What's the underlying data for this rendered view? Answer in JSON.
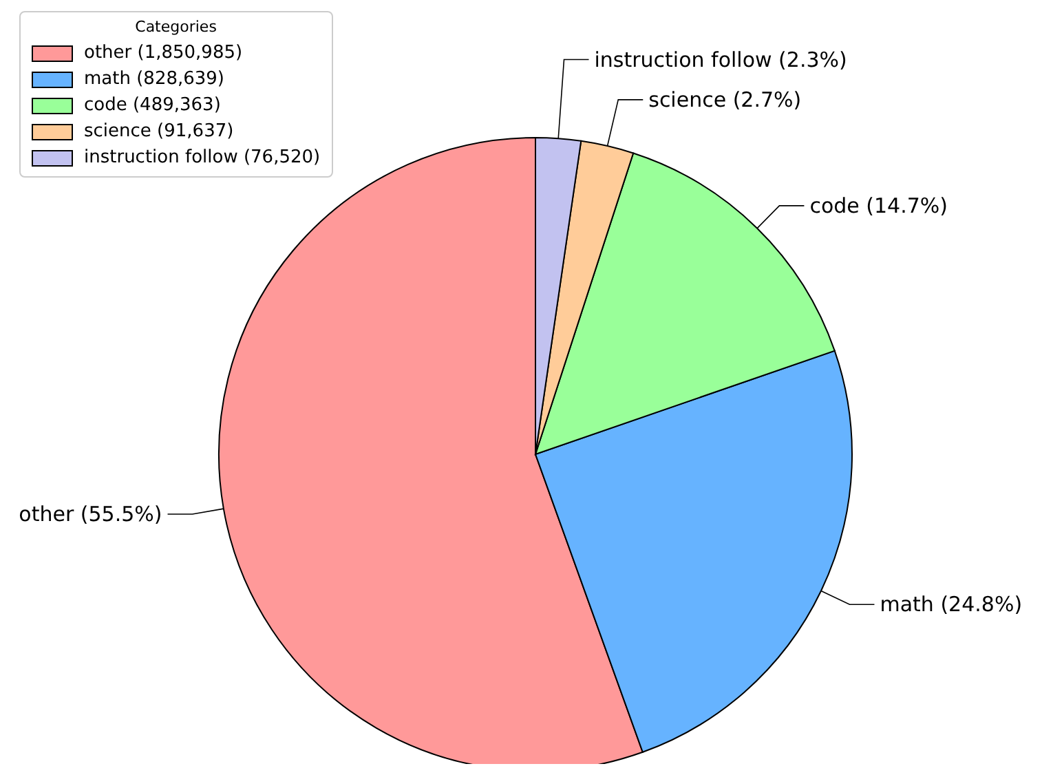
{
  "chart_data": {
    "type": "pie",
    "legend_title": "Categories",
    "legend": "top left",
    "categories": [
      "other (1,850,985)",
      "math (828,639)",
      "code (489,363)",
      "science (91,637)",
      "instruction follow (76,520)"
    ],
    "values": [
      55.5,
      24.8,
      14.7,
      2.7,
      2.3
    ],
    "colors": [
      "#ff9999",
      "#66b3ff",
      "#99ff99",
      "#ffcc99",
      "#c2c2f0"
    ],
    "value_labels": [
      "other (55.5%)",
      "math (24.8%)",
      "code (14.7%)",
      "science (2.7%)",
      "instruction follow (2.3%)"
    ]
  }
}
